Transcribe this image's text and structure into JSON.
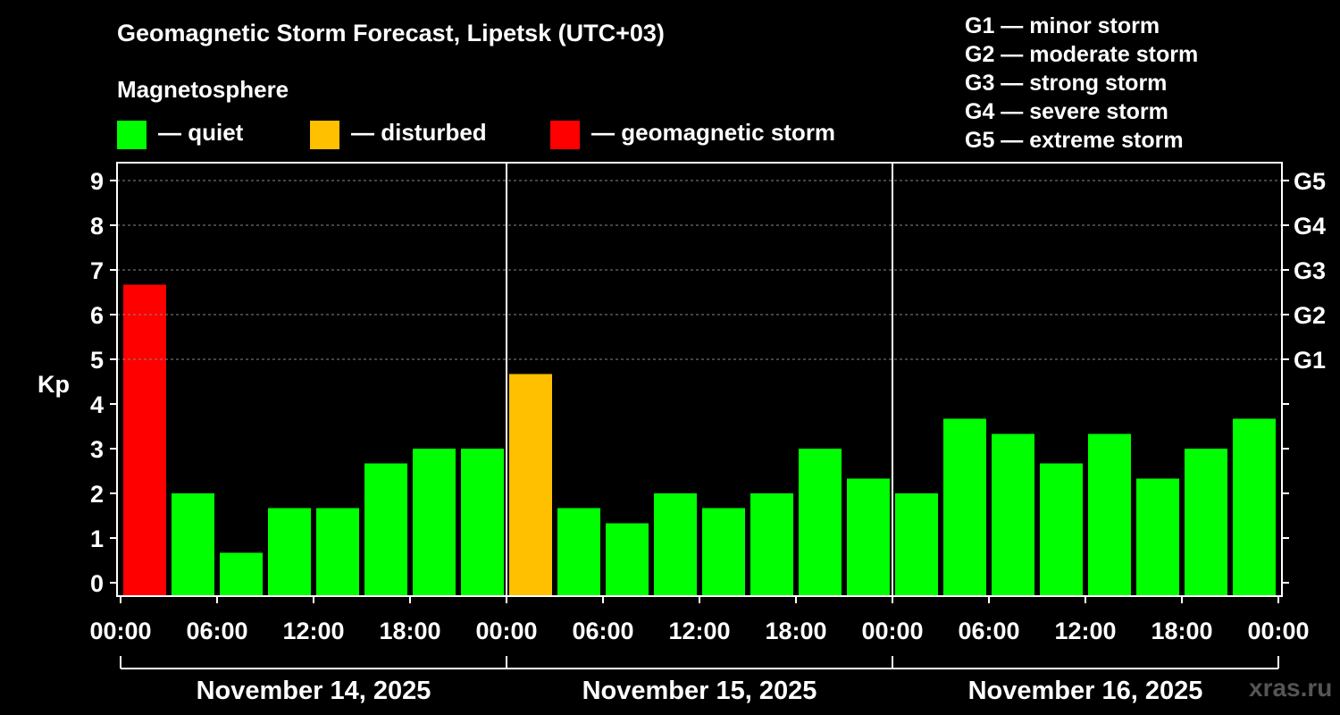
{
  "title": "Geomagnetic Storm Forecast, Lipetsk (UTC+03)",
  "subtitle": "Magnetosphere",
  "legend": [
    {
      "label": "— quiet",
      "color": "#00ff00"
    },
    {
      "label": "— disturbed",
      "color": "#ffc000"
    },
    {
      "label": "— geomagnetic storm",
      "color": "#ff0000"
    }
  ],
  "storm_levels": [
    "G1 — minor storm",
    "G2 — moderate storm",
    "G3 — strong storm",
    "G4 — severe storm",
    "G5 — extreme storm"
  ],
  "watermark": "xras.ru",
  "chart_data": {
    "type": "bar",
    "ylabel": "Kp",
    "ylim": [
      0,
      9
    ],
    "yticks": [
      0,
      1,
      2,
      3,
      4,
      5,
      6,
      7,
      8,
      9
    ],
    "right_ticks": [
      {
        "value": 5,
        "label": "G1"
      },
      {
        "value": 6,
        "label": "G2"
      },
      {
        "value": 7,
        "label": "G3"
      },
      {
        "value": 8,
        "label": "G4"
      },
      {
        "value": 9,
        "label": "G5"
      }
    ],
    "grid": "horizontal dashed at 5-9",
    "xtick_labels": [
      "00:00",
      "06:00",
      "12:00",
      "18:00",
      "00:00",
      "06:00",
      "12:00",
      "18:00",
      "00:00",
      "06:00",
      "12:00",
      "18:00",
      "00:00"
    ],
    "days": [
      "November 14, 2025",
      "November 15, 2025",
      "November 16, 2025"
    ],
    "bar_interval_hours": 3,
    "values": [
      6.67,
      2.0,
      0.67,
      1.67,
      1.67,
      2.67,
      3.0,
      3.0,
      4.67,
      1.67,
      1.33,
      2.0,
      1.67,
      2.0,
      3.0,
      2.33,
      2.0,
      3.67,
      3.33,
      2.67,
      3.33,
      2.33,
      3.0,
      3.67
    ],
    "colors": [
      "#ff0000",
      "#00ff00",
      "#00ff00",
      "#00ff00",
      "#00ff00",
      "#00ff00",
      "#00ff00",
      "#00ff00",
      "#ffc000",
      "#00ff00",
      "#00ff00",
      "#00ff00",
      "#00ff00",
      "#00ff00",
      "#00ff00",
      "#00ff00",
      "#00ff00",
      "#00ff00",
      "#00ff00",
      "#00ff00",
      "#00ff00",
      "#00ff00",
      "#00ff00",
      "#00ff00"
    ]
  }
}
